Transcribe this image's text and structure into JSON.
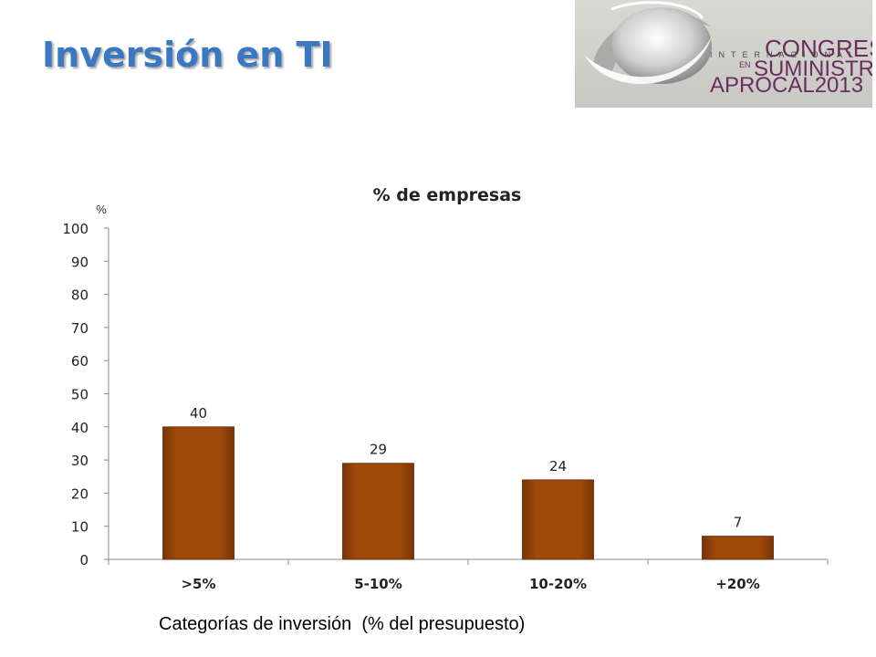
{
  "slide": {
    "title": "Inversión en TI",
    "xaxis_caption": "Categorías de inversión  (% del presupuesto)"
  },
  "logo": {
    "line1": "CONGRESO",
    "line2": "INTERNACIONAL",
    "line3_small": "EN",
    "line3": "SUMINISTROS",
    "line4": "APROCAL2013"
  },
  "colors": {
    "title": "#3b78c2",
    "bar": "#a04a0a",
    "logo_text": "#6b2d5c"
  },
  "chart_data": {
    "type": "bar",
    "title": "% de empresas",
    "ylabel": "%",
    "xlabel": "Categorías de inversión  (% del presupuesto)",
    "categories": [
      ">5%",
      "5-10%",
      "10-20%",
      "+20%"
    ],
    "values": [
      40,
      29,
      24,
      7
    ],
    "ylim": [
      0,
      100
    ],
    "yticks": [
      0,
      10,
      20,
      30,
      40,
      50,
      60,
      70,
      80,
      90,
      100
    ],
    "data_labels": true,
    "grid": false,
    "legend": "none"
  }
}
